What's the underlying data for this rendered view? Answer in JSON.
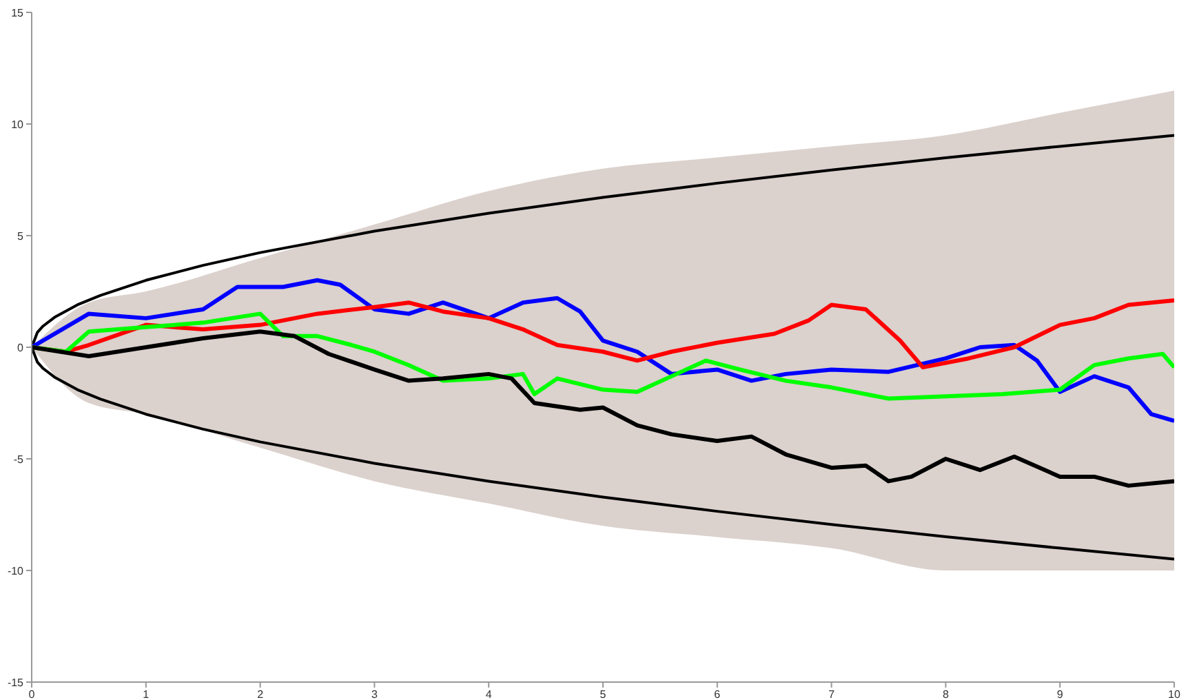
{
  "chart_data": {
    "type": "line",
    "xlim": [
      0,
      10
    ],
    "ylim": [
      -15,
      15
    ],
    "xticks": [
      0,
      1,
      2,
      3,
      4,
      5,
      6,
      7,
      8,
      9,
      10
    ],
    "yticks": [
      -15,
      -10,
      -5,
      0,
      5,
      10,
      15
    ],
    "grid": false,
    "legend": false,
    "marker": "none",
    "line_style": "solid",
    "series": [
      {
        "type": "area",
        "color": "#b09a90",
        "x": [
          0,
          0.5,
          1,
          2,
          3,
          4,
          5,
          6,
          7,
          8,
          9,
          10
        ],
        "values": [
          null,
          null,
          null,
          null,
          null,
          null,
          null,
          null,
          null,
          null,
          null,
          null
        ],
        "lower": [
          0,
          -2.5,
          -3,
          -4.5,
          -6,
          -7,
          -8,
          -8.5,
          -9,
          -10,
          -10,
          -10
        ],
        "upper": [
          0,
          2,
          2.5,
          4,
          5.5,
          7,
          8,
          8.5,
          9,
          9.5,
          10.5,
          11.5
        ]
      },
      {
        "color": "#000000",
        "x": [
          0,
          0.05,
          0.1,
          0.2,
          0.4,
          0.6,
          1,
          1.5,
          2,
          3,
          4,
          5,
          6,
          7,
          8,
          9,
          10
        ],
        "values": [
          0,
          0.67,
          0.95,
          1.34,
          1.9,
          2.32,
          3,
          3.67,
          4.24,
          5.2,
          6,
          6.71,
          7.35,
          7.94,
          8.49,
          9,
          9.49
        ]
      },
      {
        "color": "#000000",
        "x": [
          0,
          0.05,
          0.1,
          0.2,
          0.4,
          0.6,
          1,
          1.5,
          2,
          3,
          4,
          5,
          6,
          7,
          8,
          9,
          10
        ],
        "values": [
          0,
          -0.67,
          -0.95,
          -1.34,
          -1.9,
          -2.32,
          -3,
          -3.67,
          -4.24,
          -5.2,
          -6,
          -6.71,
          -7.35,
          -7.94,
          -8.49,
          -9,
          -9.49
        ]
      },
      {
        "color": "#0000ff",
        "x": [
          0,
          0.5,
          1,
          1.5,
          1.8,
          2.2,
          2.5,
          2.7,
          3,
          3.3,
          3.6,
          4,
          4.3,
          4.6,
          4.8,
          5,
          5.3,
          5.6,
          6,
          6.3,
          6.6,
          7,
          7.5,
          8,
          8.3,
          8.6,
          8.8,
          9,
          9.3,
          9.6,
          9.8,
          10
        ],
        "values": [
          0,
          1.5,
          1.3,
          1.7,
          2.7,
          2.7,
          3,
          2.8,
          1.7,
          1.5,
          2,
          1.3,
          2,
          2.2,
          1.6,
          0.3,
          -0.2,
          -1.2,
          -1,
          -1.5,
          -1.2,
          -1,
          -1.1,
          -0.5,
          0,
          0.1,
          -0.6,
          -2,
          -1.3,
          -1.8,
          -3,
          -3.3
        ]
      },
      {
        "color": "#ff0000",
        "x": [
          0,
          0.3,
          0.5,
          1,
          1.5,
          2,
          2.5,
          3,
          3.3,
          3.6,
          4,
          4.3,
          4.6,
          5,
          5.3,
          5.6,
          6,
          6.5,
          6.8,
          7,
          7.3,
          7.6,
          7.8,
          8.2,
          8.6,
          9,
          9.3,
          9.6,
          10
        ],
        "values": [
          0,
          -0.2,
          0.1,
          1,
          0.8,
          1,
          1.5,
          1.8,
          2,
          1.6,
          1.3,
          0.8,
          0.1,
          -0.2,
          -0.6,
          -0.2,
          0.2,
          0.6,
          1.2,
          1.9,
          1.7,
          0.3,
          -0.9,
          -0.5,
          0,
          1,
          1.3,
          1.9,
          2.1
        ]
      },
      {
        "color": "#00ff00",
        "x": [
          0,
          0.3,
          0.5,
          1,
          1.5,
          2,
          2.2,
          2.5,
          2.8,
          3,
          3.3,
          3.6,
          4,
          4.3,
          4.4,
          4.6,
          5,
          5.3,
          5.6,
          5.9,
          6.2,
          6.6,
          7,
          7.5,
          8,
          8.5,
          9,
          9.3,
          9.6,
          9.9,
          10
        ],
        "values": [
          0,
          -0.2,
          0.7,
          0.9,
          1.1,
          1.5,
          0.5,
          0.5,
          0.1,
          -0.2,
          -0.8,
          -1.5,
          -1.4,
          -1.2,
          -2.1,
          -1.4,
          -1.9,
          -2,
          -1.3,
          -0.6,
          -1,
          -1.5,
          -1.8,
          -2.3,
          -2.2,
          -2.1,
          -1.9,
          -0.8,
          -0.5,
          -0.3,
          -0.9
        ]
      },
      {
        "color": "#000000",
        "x": [
          0,
          0.5,
          1,
          1.5,
          2,
          2.3,
          2.6,
          3,
          3.3,
          3.6,
          4,
          4.2,
          4.4,
          4.8,
          5,
          5.3,
          5.6,
          6,
          6.3,
          6.6,
          7,
          7.3,
          7.5,
          7.7,
          8,
          8.3,
          8.6,
          9,
          9.3,
          9.6,
          10
        ],
        "values": [
          0,
          -0.4,
          0,
          0.4,
          0.7,
          0.5,
          -0.3,
          -1,
          -1.5,
          -1.4,
          -1.2,
          -1.4,
          -2.5,
          -2.8,
          -2.7,
          -3.5,
          -3.9,
          -4.2,
          -4,
          -4.8,
          -5.4,
          -5.3,
          -6,
          -5.8,
          -5,
          -5.5,
          -4.9,
          -5.8,
          -5.8,
          -6.2,
          -6
        ]
      }
    ]
  }
}
